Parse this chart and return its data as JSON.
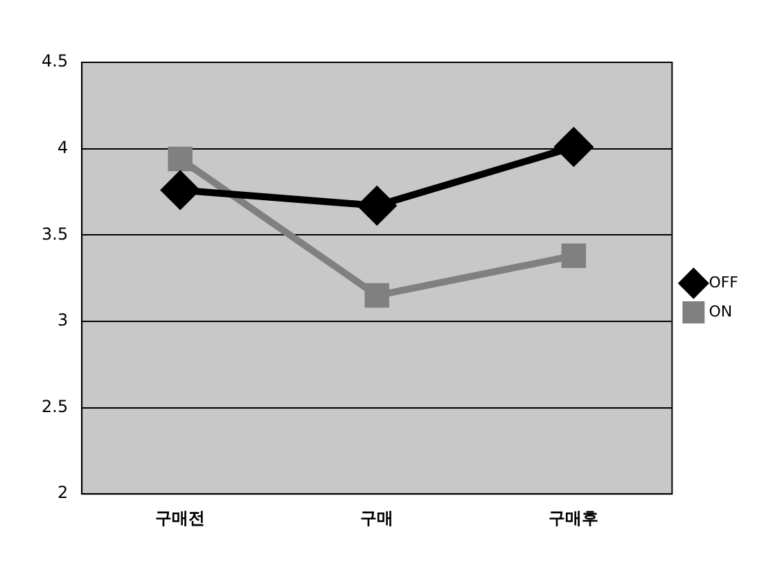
{
  "chart_data": {
    "type": "line",
    "categories": [
      "구매전",
      "구매",
      "구매후"
    ],
    "series": [
      {
        "name": "OFF",
        "color": "#000000",
        "marker": "diamond",
        "values": [
          3.76,
          3.67,
          4.01
        ]
      },
      {
        "name": "ON",
        "color": "#808080",
        "marker": "square",
        "values": [
          3.94,
          3.15,
          3.38
        ]
      }
    ],
    "ylim": [
      2,
      4.5
    ],
    "yticks": [
      2,
      2.5,
      3,
      3.5,
      4,
      4.5
    ],
    "grid": "y",
    "legend": "right"
  }
}
